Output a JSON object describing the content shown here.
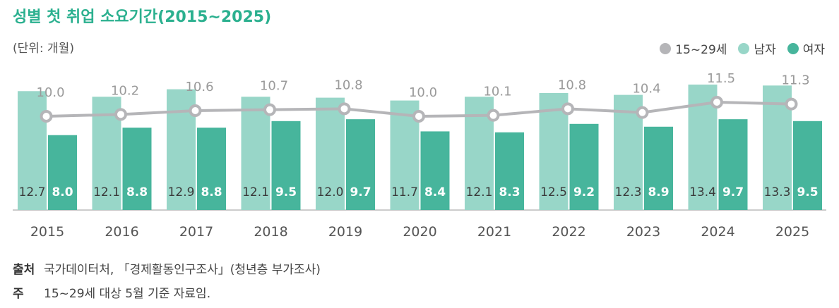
{
  "title": "성별 첫 취업 소요기간(2015~2025)",
  "unit": "(단위: 개월)",
  "legend": [
    {
      "label": "15~29세",
      "color": "#b5b5b8"
    },
    {
      "label": "남자",
      "color": "#98d6c8"
    },
    {
      "label": "여자",
      "color": "#47b59c"
    }
  ],
  "footer": {
    "source_label": "출처",
    "source_text": "국가데이터처, 「경제활동인구조사」(청년층 부가조사)",
    "note_label": "주",
    "note_text": "15~29세 대상 5월 기준 자료임."
  },
  "chart_data": {
    "type": "bar",
    "categories": [
      "2015",
      "2016",
      "2017",
      "2018",
      "2019",
      "2020",
      "2021",
      "2022",
      "2023",
      "2024",
      "2025"
    ],
    "series": [
      {
        "name": "남자",
        "type": "bar",
        "color": "#98d6c8",
        "values": [
          12.7,
          12.1,
          12.9,
          12.1,
          12.0,
          11.7,
          12.1,
          12.5,
          12.3,
          13.4,
          13.3
        ]
      },
      {
        "name": "여자",
        "type": "bar",
        "color": "#47b59c",
        "values": [
          8.0,
          8.8,
          8.8,
          9.5,
          9.7,
          8.4,
          8.3,
          9.2,
          8.9,
          9.7,
          9.5
        ]
      },
      {
        "name": "15~29세",
        "type": "line",
        "color": "#b5b5b8",
        "values": [
          10.0,
          10.2,
          10.6,
          10.7,
          10.8,
          10.0,
          10.1,
          10.8,
          10.4,
          11.5,
          11.3
        ]
      }
    ]
  }
}
